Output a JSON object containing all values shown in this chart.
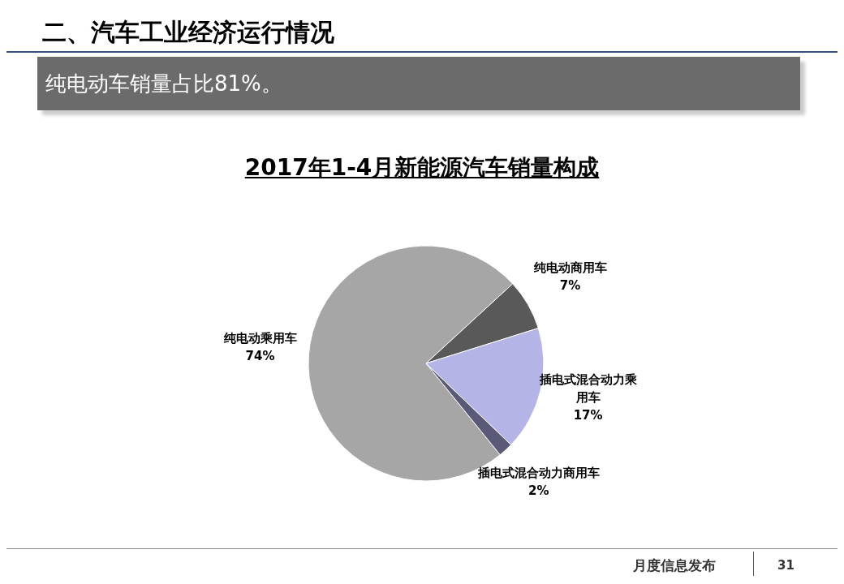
{
  "chart_data": {
    "type": "pie",
    "title": "2017年1-4月新能源汽车销量构成",
    "subtitle": "纯电动车销量占比81%。",
    "annotations": [
      "二、汽车工业经济运行情况",
      "月度信息发布",
      "31"
    ],
    "categories": [
      "纯电动乘用车",
      "纯电动商用车",
      "插电式混合动力乘用车",
      "插电式混合动力商用车"
    ],
    "values": [
      74,
      7,
      17,
      2
    ],
    "colors": [
      "#a6a6a6",
      "#595959",
      "#b4b4e6",
      "#5a5a78"
    ],
    "value_labels": [
      "74%",
      "7%",
      "17%",
      "2%"
    ]
  }
}
